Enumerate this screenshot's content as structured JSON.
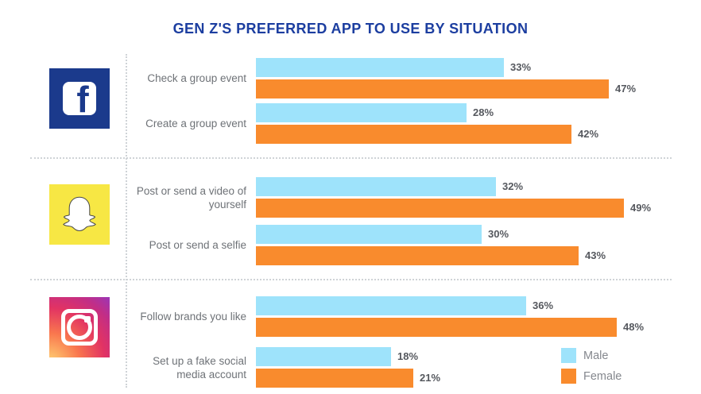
{
  "title": "GEN Z'S PREFERRED APP TO USE BY SITUATION",
  "legend": {
    "male_label": "Male",
    "female_label": "Female"
  },
  "colors": {
    "male": "#9EE3FB",
    "female": "#F98B2D",
    "title_blue": "#1C3EA0",
    "facebook_blue": "#1B3A8C",
    "snapchat_yellow": "#F7E744",
    "label_gray": "#6E7277",
    "value_gray": "#55585E",
    "legend_gray": "#85888E",
    "dotted_gray": "#CFD3D7"
  },
  "chart_data": {
    "type": "bar",
    "orientation": "horizontal",
    "unit": "%",
    "series_names": [
      "Male",
      "Female"
    ],
    "legend_position": "bottom-right",
    "grid": false,
    "groups": [
      {
        "app": "Facebook",
        "icon": "facebook-icon",
        "rows": [
          {
            "label": "Check a group event",
            "male": 33,
            "female": 47
          },
          {
            "label": "Create a group event",
            "male": 28,
            "female": 42
          }
        ]
      },
      {
        "app": "Snapchat",
        "icon": "snapchat-icon",
        "rows": [
          {
            "label": "Post or send a video of yourself",
            "male": 32,
            "female": 49
          },
          {
            "label": "Post or send a selfie",
            "male": 30,
            "female": 43
          }
        ]
      },
      {
        "app": "Instagram",
        "icon": "instagram-icon",
        "rows": [
          {
            "label": "Follow brands you like",
            "male": 36,
            "female": 48
          },
          {
            "label": "Set up a fake social media account",
            "male": 18,
            "female": 21
          }
        ]
      }
    ]
  }
}
